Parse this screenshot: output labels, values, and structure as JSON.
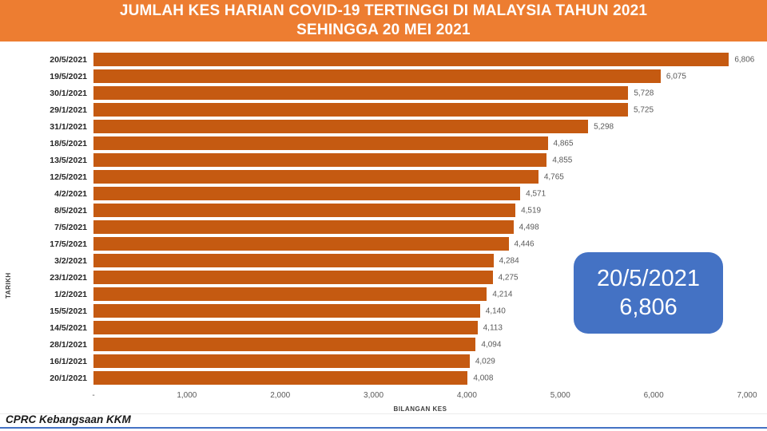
{
  "header": {
    "title_line1": "JUMLAH KES HARIAN COVID-19 TERTINGGI DI MALAYSIA TAHUN 2021",
    "title_line2": "SEHINGGA 20 MEI 2021",
    "background_color": "#ED7D31",
    "text_color": "#FFFFFF"
  },
  "chart_data": {
    "type": "bar",
    "orientation": "horizontal",
    "xlabel": "BILANGAN KES",
    "ylabel": "TARIKH",
    "xlim": [
      0,
      7000
    ],
    "x_ticks": [
      "-",
      "1,000",
      "2,000",
      "3,000",
      "4,000",
      "5,000",
      "6,000",
      "7,000"
    ],
    "x_tick_values": [
      0,
      1000,
      2000,
      3000,
      4000,
      5000,
      6000,
      7000
    ],
    "grid": false,
    "legend": "none",
    "bar_color": "#C55A11",
    "categories": [
      "20/5/2021",
      "19/5/2021",
      "30/1/2021",
      "29/1/2021",
      "31/1/2021",
      "18/5/2021",
      "13/5/2021",
      "12/5/2021",
      "4/2/2021",
      "8/5/2021",
      "7/5/2021",
      "17/5/2021",
      "3/2/2021",
      "23/1/2021",
      "1/2/2021",
      "15/5/2021",
      "14/5/2021",
      "28/1/2021",
      "16/1/2021",
      "20/1/2021"
    ],
    "values": [
      6806,
      6075,
      5728,
      5725,
      5298,
      4865,
      4855,
      4765,
      4571,
      4519,
      4498,
      4446,
      4284,
      4275,
      4214,
      4140,
      4113,
      4094,
      4029,
      4008
    ],
    "value_labels": [
      "6,806",
      "6,075",
      "5,728",
      "5,725",
      "5,298",
      "4,865",
      "4,855",
      "4,765",
      "4,571",
      "4,519",
      "4,498",
      "4,446",
      "4,284",
      "4,275",
      "4,214",
      "4,140",
      "4,113",
      "4,094",
      "4,029",
      "4,008"
    ]
  },
  "callout": {
    "line1": "20/5/2021",
    "line2": "6,806",
    "background_color": "#4472C4",
    "text_color": "#FFFFFF"
  },
  "footer": {
    "source": "CPRC Kebangsaan KKM"
  }
}
